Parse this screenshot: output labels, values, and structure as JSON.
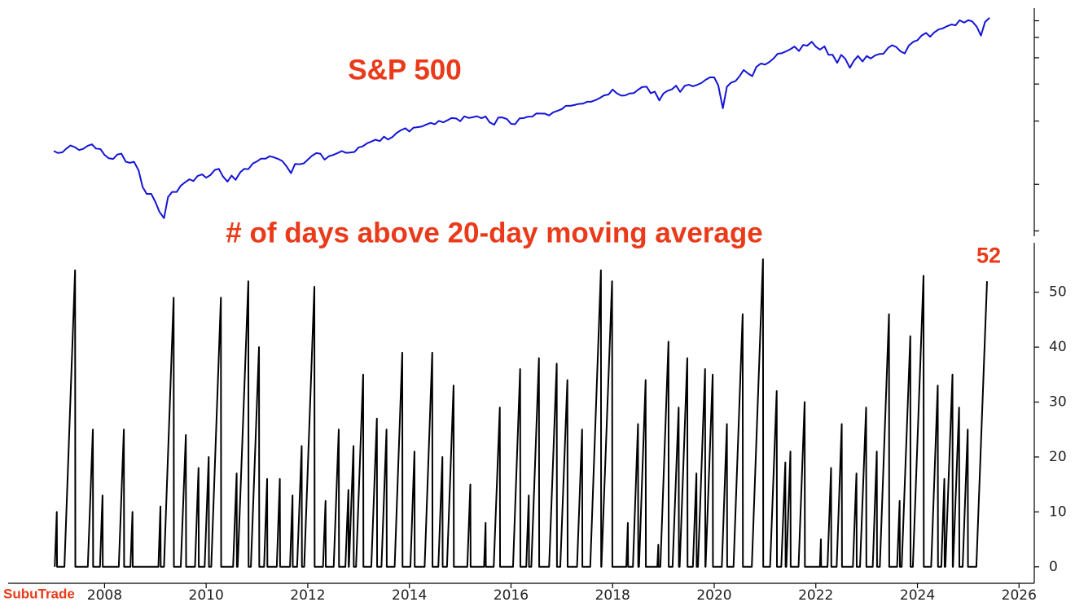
{
  "chart_data": [
    {
      "type": "line",
      "title": "S&P 500",
      "log": true,
      "ytick_labels": false,
      "xlim": [
        2007.0,
        2026.3
      ],
      "ylim": [
        566,
        6890
      ],
      "yticks": [
        600,
        1000,
        2000,
        3000,
        4000,
        5000,
        6000
      ],
      "x": [
        2007,
        2007.08,
        2007.17,
        2007.25,
        2007.33,
        2007.42,
        2007.5,
        2007.58,
        2007.67,
        2007.75,
        2007.83,
        2007.92,
        2008,
        2008.08,
        2008.17,
        2008.25,
        2008.33,
        2008.42,
        2008.5,
        2008.58,
        2008.67,
        2008.75,
        2008.83,
        2008.92,
        2009,
        2009.08,
        2009.17,
        2009.25,
        2009.33,
        2009.42,
        2009.5,
        2009.58,
        2009.67,
        2009.75,
        2009.83,
        2009.92,
        2010,
        2010.08,
        2010.17,
        2010.25,
        2010.33,
        2010.42,
        2010.5,
        2010.58,
        2010.67,
        2010.75,
        2010.83,
        2010.92,
        2011,
        2011.08,
        2011.17,
        2011.25,
        2011.33,
        2011.42,
        2011.5,
        2011.58,
        2011.67,
        2011.75,
        2011.83,
        2011.92,
        2012,
        2012.08,
        2012.17,
        2012.25,
        2012.33,
        2012.42,
        2012.5,
        2012.58,
        2012.67,
        2012.75,
        2012.83,
        2012.92,
        2013,
        2013.08,
        2013.17,
        2013.25,
        2013.33,
        2013.42,
        2013.5,
        2013.58,
        2013.67,
        2013.75,
        2013.83,
        2013.92,
        2014,
        2014.08,
        2014.17,
        2014.25,
        2014.33,
        2014.42,
        2014.5,
        2014.58,
        2014.67,
        2014.75,
        2014.83,
        2014.92,
        2015,
        2015.08,
        2015.17,
        2015.25,
        2015.33,
        2015.42,
        2015.5,
        2015.58,
        2015.67,
        2015.75,
        2015.83,
        2015.92,
        2016,
        2016.08,
        2016.17,
        2016.25,
        2016.33,
        2016.42,
        2016.5,
        2016.58,
        2016.67,
        2016.75,
        2016.83,
        2016.92,
        2017,
        2017.08,
        2017.17,
        2017.25,
        2017.33,
        2017.42,
        2017.5,
        2017.58,
        2017.67,
        2017.75,
        2017.83,
        2017.92,
        2018,
        2018.08,
        2018.17,
        2018.25,
        2018.33,
        2018.42,
        2018.5,
        2018.58,
        2018.67,
        2018.75,
        2018.83,
        2018.92,
        2019,
        2019.08,
        2019.17,
        2019.25,
        2019.33,
        2019.42,
        2019.5,
        2019.58,
        2019.67,
        2019.75,
        2019.83,
        2019.92,
        2020,
        2020.08,
        2020.17,
        2020.25,
        2020.33,
        2020.42,
        2020.5,
        2020.58,
        2020.67,
        2020.75,
        2020.83,
        2020.92,
        2021,
        2021.08,
        2021.17,
        2021.25,
        2021.33,
        2021.42,
        2021.5,
        2021.58,
        2021.67,
        2021.75,
        2021.83,
        2021.92,
        2022,
        2022.08,
        2022.17,
        2022.25,
        2022.33,
        2022.42,
        2022.5,
        2022.58,
        2022.67,
        2022.75,
        2022.83,
        2022.92,
        2023,
        2023.08,
        2023.17,
        2023.25,
        2023.33,
        2023.42,
        2023.5,
        2023.58,
        2023.67,
        2023.75,
        2023.83,
        2023.92,
        2024,
        2024.08,
        2024.17,
        2024.25,
        2024.33,
        2024.42,
        2024.5,
        2024.58,
        2024.67,
        2024.75,
        2024.83,
        2024.92,
        2025,
        2025.08,
        2025.17,
        2025.25,
        2025.33,
        2025.42
      ],
      "series": [
        {
          "color": "#1414d6",
          "values": [
            1440,
            1410,
            1420,
            1480,
            1530,
            1500,
            1455,
            1475,
            1525,
            1550,
            1480,
            1470,
            1380,
            1330,
            1320,
            1385,
            1400,
            1280,
            1265,
            1280,
            1165,
            970,
            900,
            900,
            825,
            740,
            690,
            870,
            920,
            920,
            985,
            1020,
            1057,
            1036,
            1095,
            1115,
            1075,
            1105,
            1170,
            1185,
            1090,
            1030,
            1100,
            1050,
            1140,
            1185,
            1180,
            1257,
            1285,
            1325,
            1325,
            1360,
            1345,
            1320,
            1290,
            1220,
            1130,
            1250,
            1245,
            1257,
            1310,
            1365,
            1408,
            1397,
            1310,
            1362,
            1380,
            1406,
            1440,
            1412,
            1416,
            1426,
            1498,
            1515,
            1569,
            1597,
            1630,
            1606,
            1686,
            1633,
            1682,
            1756,
            1806,
            1848,
            1783,
            1859,
            1872,
            1884,
            1924,
            1960,
            1931,
            2003,
            1972,
            2018,
            2068,
            2059,
            1995,
            2105,
            2068,
            2086,
            2107,
            2063,
            2104,
            1972,
            1920,
            2079,
            2080,
            2044,
            1940,
            1932,
            2060,
            2065,
            2097,
            2099,
            2174,
            2171,
            2168,
            2126,
            2199,
            2239,
            2279,
            2364,
            2363,
            2384,
            2412,
            2423,
            2470,
            2472,
            2519,
            2575,
            2648,
            2674,
            2824,
            2714,
            2641,
            2648,
            2705,
            2718,
            2816,
            2902,
            2914,
            2712,
            2760,
            2507,
            2704,
            2784,
            2834,
            2946,
            2752,
            2942,
            2980,
            2926,
            2977,
            3038,
            3141,
            3231,
            3226,
            2954,
            2300,
            2912,
            3044,
            3100,
            3271,
            3500,
            3363,
            3270,
            3622,
            3756,
            3714,
            3811,
            3973,
            4181,
            4204,
            4298,
            4395,
            4523,
            4308,
            4605,
            4567,
            4766,
            4516,
            4374,
            4530,
            4132,
            4132,
            3785,
            4130,
            3955,
            3586,
            3872,
            4080,
            3840,
            4077,
            3970,
            4109,
            4169,
            4180,
            4450,
            4589,
            4508,
            4288,
            4194,
            4568,
            4770,
            4846,
            5096,
            5254,
            5036,
            5278,
            5460,
            5522,
            5648,
            5762,
            5705,
            6032,
            5882,
            6040,
            5955,
            5612,
            5100,
            5912,
            6205
          ]
        }
      ]
    },
    {
      "type": "line",
      "title": "# of days above 20-day moving average",
      "annotate_last": true,
      "xlim": [
        2007.0,
        2026.3
      ],
      "xticks": [
        2008,
        2010,
        2012,
        2014,
        2016,
        2018,
        2020,
        2022,
        2024,
        2026
      ],
      "ylim": [
        -3,
        59
      ],
      "yticks": [
        0,
        10,
        20,
        30,
        40,
        50
      ],
      "x": [
        2007.02,
        2007.06,
        2007.065,
        2007.21,
        2007.42,
        2007.425,
        2007.67,
        2007.77,
        2007.775,
        2007.91,
        2007.96,
        2007.965,
        2008.28,
        2008.38,
        2008.385,
        2008.51,
        2008.55,
        2008.555,
        2009.06,
        2009.1,
        2009.105,
        2009.17,
        2009.36,
        2009.365,
        2009.5,
        2009.6,
        2009.605,
        2009.78,
        2009.85,
        2009.855,
        2009.97,
        2010.05,
        2010.055,
        2010.1,
        2010.29,
        2010.295,
        2010.53,
        2010.6,
        2010.605,
        2010.62,
        2010.83,
        2010.835,
        2010.88,
        2011.04,
        2011.045,
        2011.14,
        2011.2,
        2011.205,
        2011.39,
        2011.45,
        2011.455,
        2011.65,
        2011.7,
        2011.705,
        2011.79,
        2011.88,
        2011.885,
        2011.93,
        2012.13,
        2012.135,
        2012.3,
        2012.35,
        2012.355,
        2012.51,
        2012.61,
        2012.615,
        2012.74,
        2012.8,
        2012.805,
        2012.81,
        2012.9,
        2012.905,
        2012.95,
        2013.09,
        2013.095,
        2013.25,
        2013.36,
        2013.365,
        2013.45,
        2013.55,
        2013.555,
        2013.71,
        2013.86,
        2013.865,
        2014.02,
        2014.1,
        2014.105,
        2014.3,
        2014.45,
        2014.455,
        2014.57,
        2014.65,
        2014.655,
        2014.74,
        2014.87,
        2014.875,
        2015.14,
        2015.2,
        2015.205,
        2015.47,
        2015.5,
        2015.505,
        2015.66,
        2015.78,
        2015.785,
        2016.04,
        2016.18,
        2016.185,
        2016.3,
        2016.35,
        2016.355,
        2016.4,
        2016.55,
        2016.555,
        2016.75,
        2016.9,
        2016.905,
        2016.97,
        2017.11,
        2017.115,
        2017.3,
        2017.4,
        2017.405,
        2017.56,
        2017.77,
        2017.775,
        2017.78,
        2017.99,
        2017.995,
        2018.27,
        2018.3,
        2018.305,
        2018.4,
        2018.5,
        2018.505,
        2018.52,
        2018.65,
        2018.655,
        2018.88,
        2018.9,
        2018.905,
        2018.94,
        2019.1,
        2019.105,
        2019.18,
        2019.3,
        2019.305,
        2019.32,
        2019.47,
        2019.475,
        2019.58,
        2019.65,
        2019.655,
        2019.68,
        2019.82,
        2019.825,
        2019.83,
        2019.97,
        2019.975,
        2020.15,
        2020.25,
        2020.255,
        2020.38,
        2020.56,
        2020.565,
        2020.74,
        2020.96,
        2020.965,
        2021.1,
        2021.23,
        2021.235,
        2021.32,
        2021.4,
        2021.405,
        2021.42,
        2021.5,
        2021.505,
        2021.66,
        2021.78,
        2021.785,
        2022.08,
        2022.1,
        2022.105,
        2022.23,
        2022.3,
        2022.305,
        2022.41,
        2022.51,
        2022.515,
        2022.73,
        2022.8,
        2022.805,
        2022.87,
        2022.99,
        2022.995,
        2023.12,
        2023.2,
        2023.205,
        2023.26,
        2023.44,
        2023.445,
        2023.6,
        2023.65,
        2023.655,
        2023.69,
        2023.86,
        2023.865,
        2023.91,
        2024.12,
        2024.125,
        2024.27,
        2024.4,
        2024.405,
        2024.47,
        2024.53,
        2024.535,
        2024.55,
        2024.69,
        2024.695,
        2024.7,
        2024.82,
        2024.825,
        2024.89,
        2024.99,
        2024.995,
        2025.16,
        2025.37
      ],
      "series": [
        {
          "color": "#000000",
          "values": [
            0,
            10,
            0,
            0,
            54,
            0,
            0,
            25,
            0,
            0,
            13,
            0,
            0,
            25,
            0,
            0,
            10,
            0,
            0,
            11,
            0,
            0,
            49,
            0,
            0,
            24,
            0,
            0,
            18,
            0,
            0,
            20,
            0,
            0,
            49,
            0,
            0,
            17,
            0,
            0,
            52,
            0,
            0,
            40,
            0,
            0,
            16,
            0,
            0,
            16,
            0,
            0,
            13,
            0,
            0,
            22,
            0,
            0,
            51,
            0,
            0,
            12,
            0,
            0,
            25,
            0,
            0,
            14,
            0,
            0,
            22,
            0,
            0,
            35,
            0,
            0,
            27,
            0,
            0,
            25,
            0,
            0,
            39,
            0,
            0,
            21,
            0,
            0,
            39,
            0,
            0,
            20,
            0,
            0,
            33,
            0,
            0,
            15,
            0,
            0,
            8,
            0,
            0,
            29,
            0,
            0,
            36,
            0,
            0,
            13,
            0,
            0,
            38,
            0,
            0,
            37,
            0,
            0,
            34,
            0,
            0,
            25,
            0,
            0,
            54,
            0,
            0,
            52,
            0,
            0,
            8,
            0,
            0,
            26,
            0,
            0,
            34,
            0,
            0,
            4,
            0,
            0,
            41,
            0,
            0,
            29,
            0,
            0,
            38,
            0,
            0,
            17,
            0,
            0,
            36,
            0,
            0,
            35,
            0,
            0,
            26,
            0,
            0,
            46,
            0,
            0,
            56,
            0,
            0,
            32,
            0,
            0,
            19,
            0,
            0,
            21,
            0,
            0,
            30,
            0,
            0,
            5,
            0,
            0,
            18,
            0,
            0,
            26,
            0,
            0,
            17,
            0,
            0,
            29,
            0,
            0,
            21,
            0,
            0,
            46,
            0,
            0,
            12,
            0,
            0,
            42,
            0,
            0,
            53,
            0,
            0,
            33,
            0,
            0,
            16,
            0,
            0,
            35,
            0,
            0,
            29,
            0,
            0,
            25,
            0,
            0,
            52
          ]
        }
      ]
    }
  ],
  "watermark": "SubuTrade"
}
